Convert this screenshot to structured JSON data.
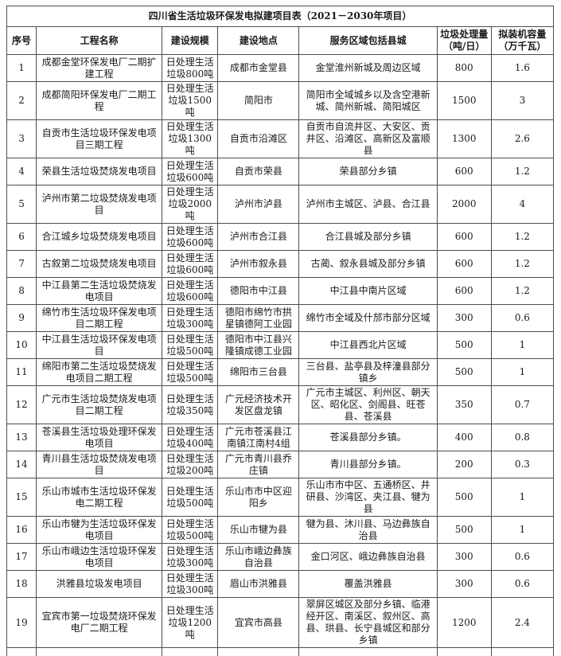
{
  "title": "四川省生活垃圾环保发电拟建项目表（2021－2030年项目）",
  "colors": {
    "background": "#ffffff",
    "border": "#4d4d4d",
    "text": "#1a1a1a"
  },
  "table": {
    "headers": [
      "序号",
      "工程名称",
      "建设规模",
      "建设地点",
      "服务区域包括县城",
      "垃圾处理量（吨/日）",
      "拟装机容量（万千瓦）"
    ],
    "column_keys": [
      "no",
      "name",
      "scale",
      "location",
      "service",
      "capacity",
      "power"
    ],
    "rows": [
      {
        "no": "1",
        "name": "成都金堂环保发电厂二期扩建工程",
        "scale": "日处理生活垃圾800吨",
        "location": "成都市金堂县",
        "service": "金堂淮州新城及周边区域",
        "capacity": "800",
        "power": "1.6"
      },
      {
        "no": "2",
        "name": "成都简阳环保发电厂二期工程",
        "scale": "日处理生活垃圾1500吨",
        "location": "简阳市",
        "service": "简阳市全域城乡以及含空港新城、简州新城、简阳城区",
        "capacity": "1500",
        "power": "3"
      },
      {
        "no": "3",
        "name": "自贡市生活垃圾环保发电项目三期工程",
        "scale": "日处理生活垃圾1300吨",
        "location": "自贡市沿滩区",
        "service": "自贡市自流井区、大安区、贡井区、沿滩区、高新区及富顺县",
        "capacity": "1300",
        "power": "2.6"
      },
      {
        "no": "4",
        "name": "荣县生活垃圾焚烧发电项目",
        "scale": "日处理生活垃圾600吨",
        "location": "自贡市荣县",
        "service": "荣县部分乡镇",
        "capacity": "600",
        "power": "1.2"
      },
      {
        "no": "5",
        "name": "泸州市第二垃圾焚烧发电项目",
        "scale": "日处理生活垃圾2000吨",
        "location": "泸州市泸县",
        "service": "泸州市主城区、泸县、合江县",
        "capacity": "2000",
        "power": "4"
      },
      {
        "no": "6",
        "name": "合江城乡垃圾焚烧发电项目",
        "scale": "日处理生活垃圾600吨",
        "location": "泸州市合江县",
        "service": "合江县城及部分乡镇",
        "capacity": "600",
        "power": "1.2"
      },
      {
        "no": "7",
        "name": "古叙第二垃圾焚烧发电项目",
        "scale": "日处理生活垃圾600吨",
        "location": "泸州市叙永县",
        "service": "古蔺、叙永县城及部分乡镇",
        "capacity": "600",
        "power": "1.2"
      },
      {
        "no": "8",
        "name": "中江县第二生活垃圾焚烧发电项目",
        "scale": "日处理生活垃圾600吨",
        "location": "德阳市中江县",
        "service": "中江县中南片区域",
        "capacity": "600",
        "power": "1.2"
      },
      {
        "no": "9",
        "name": "绵竹市生活垃圾环保发电项目二期工程",
        "scale": "日处理生活垃圾300吨",
        "location": "德阳市绵竹市拱星镇德阿工业园",
        "service": "绵竹市全域及什邡市部分区域",
        "capacity": "300",
        "power": "0.6"
      },
      {
        "no": "10",
        "name": "中江县生活垃圾环保发电项目",
        "scale": "日处理生活垃圾500吨",
        "location": "德阳市中江县兴隆镇成德工业园",
        "service": "中江县西北片区域",
        "capacity": "500",
        "power": "1"
      },
      {
        "no": "11",
        "name": "绵阳市第二生活垃圾焚烧发电项目二期工程",
        "scale": "日处理生活垃圾500吨",
        "location": "绵阳市三台县",
        "service": "三台县、盐亭县及梓潼县部分镇乡",
        "capacity": "500",
        "power": "1"
      },
      {
        "no": "12",
        "name": "广元市生活垃圾焚烧发电项目二期工程",
        "scale": "日处理生活垃圾350吨",
        "location": "广元经济技术开发区盘龙镇",
        "service": "广元市主城区、利州区、朝天区、昭化区、剑阁县、旺苍县、苍溪县",
        "capacity": "350",
        "power": "0.7"
      },
      {
        "no": "13",
        "name": "苍溪县生活垃圾处理环保发电项目",
        "scale": "日处理生活垃圾400吨",
        "location": "广元市苍溪县江南镇江南村4组",
        "service": "苍溪县部分乡镇。",
        "capacity": "400",
        "power": "0.8"
      },
      {
        "no": "14",
        "name": "青川县生活垃圾焚烧发电项目",
        "scale": "日处理生活垃圾200吨",
        "location": "广元市青川县乔庄镇",
        "service": "青川县部分乡镇。",
        "capacity": "200",
        "power": "0.3"
      },
      {
        "no": "15",
        "name": "乐山市城市生活垃圾环保发电二期工程",
        "scale": "日处理生活垃圾500吨",
        "location": "乐山市市中区迎阳乡",
        "service": "乐山市市中区、五通桥区、井研县、沙湾区、夹江县、犍为县",
        "capacity": "500",
        "power": "1"
      },
      {
        "no": "16",
        "name": "乐山市犍为生活垃圾环保发电项目",
        "scale": "日处理生活垃圾500吨",
        "location": "乐山市犍为县",
        "service": "犍为县、沐川县、马边彝族自治县",
        "capacity": "500",
        "power": "1"
      },
      {
        "no": "17",
        "name": "乐山市峨边生活垃圾环保发电项目",
        "scale": "日处理生活垃圾300吨",
        "location": "乐山市峨边彝族自治县",
        "service": "金口河区、峨边彝族自治县",
        "capacity": "300",
        "power": "0.6"
      },
      {
        "no": "18",
        "name": "洪雅县垃圾发电项目",
        "scale": "日处理生活垃圾300吨",
        "location": "眉山市洪雅县",
        "service": "覆盖洪雅县",
        "capacity": "300",
        "power": "0.6"
      },
      {
        "no": "19",
        "name": "宜宾市第一垃圾焚烧环保发电厂二期工程",
        "scale": "日处理生活垃圾1200吨",
        "location": "宜宾市高县",
        "service": "翠屏区城区及部分乡镇、临港经开区、南溪区、叙州区、高县、珙县、长宁县城区和部分乡镇",
        "capacity": "1200",
        "power": "2.4"
      }
    ]
  }
}
